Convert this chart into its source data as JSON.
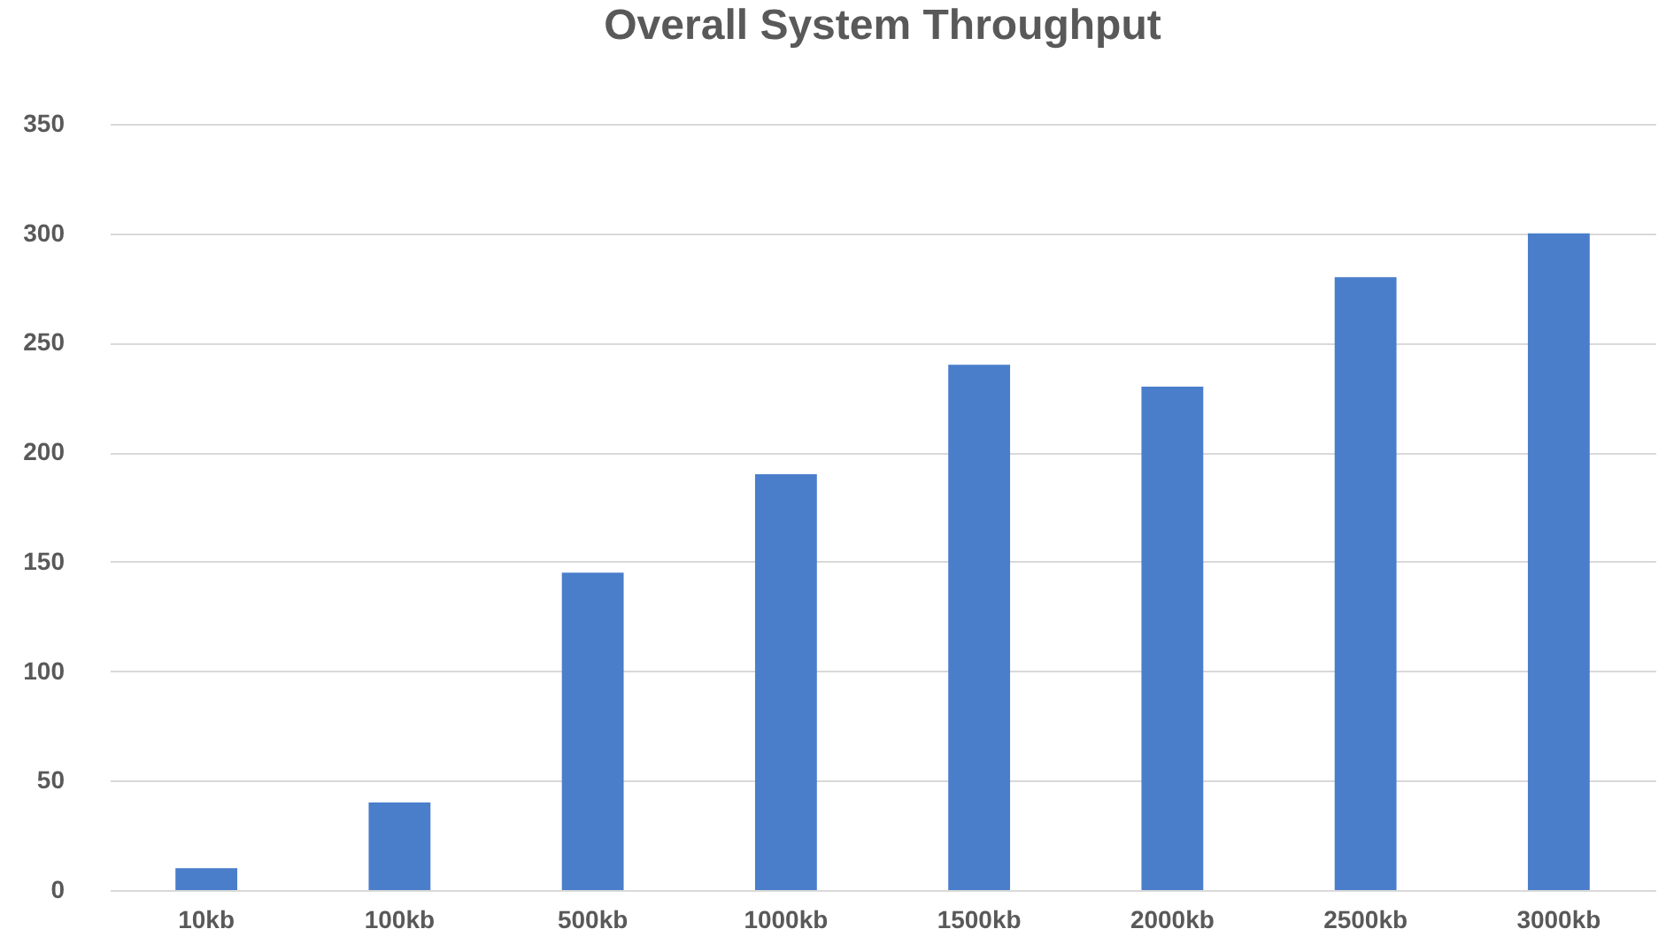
{
  "chart_data": {
    "type": "bar",
    "title": "Overall System Throughput",
    "categories": [
      "10kb",
      "100kb",
      "500kb",
      "1000kb",
      "1500kb",
      "2000kb",
      "2500kb",
      "3000kb"
    ],
    "values": [
      10,
      40,
      145,
      190,
      240,
      230,
      280,
      300
    ],
    "color": "#4a7ecb",
    "ylim": [
      0,
      350
    ],
    "yticks": [
      0,
      50,
      100,
      150,
      200,
      250,
      300,
      350
    ],
    "grid": "y"
  }
}
